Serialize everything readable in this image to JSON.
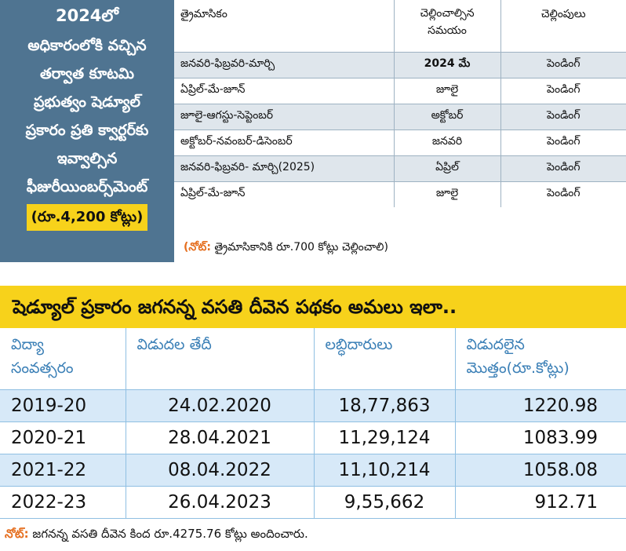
{
  "left_panel": {
    "lines": [
      "2024లో",
      "అధికారంలోకి వచ్చిన",
      "తర్వాత కూటమి",
      "ప్రభుత్వం షెడ్యూల్",
      "ప్రకారం ప్రతి క్వార్టర్‌కు",
      "ఇవ్వాల్సిన",
      "ఫీజురీయింబర్స్‌మెంట్"
    ],
    "amount": "(రూ.4,200 కోట్లు)"
  },
  "quarter_table": {
    "headers": {
      "quarter": "త్రైమాసికం",
      "due_line1": "చెల్లించాల్సిన",
      "due_line2": "సమయం",
      "status": "చెల్లింపులు"
    },
    "rows": [
      {
        "quarter": "జనవరి-ఫిబ్రవరి-మార్చి",
        "due": "2024 మే",
        "status": "పెండింగ్"
      },
      {
        "quarter": "ఏప్రిల్-మే-జూన్",
        "due": "జూలై",
        "status": "పెండింగ్"
      },
      {
        "quarter": "జూలై-ఆగస్టు-సెప్టెంబర్",
        "due": "అక్టోబర్",
        "status": "పెండింగ్"
      },
      {
        "quarter": "అక్టోబర్-నవంబర్-డిసెంబర్",
        "due": "జనవరి",
        "status": "పెండింగ్"
      },
      {
        "quarter": "జనవరి-ఫిబ్రవరి- మార్చి(2025)",
        "due": "ఏప్రిల్",
        "status": "పెండింగ్"
      },
      {
        "quarter": "ఏప్రిల్-మే-జూన్",
        "due": "జూలై",
        "status": "పెండింగ్"
      }
    ],
    "note_label": "(నోట్:",
    "note_text": " త్రైమాసికానికి రూ.700 కోట్లు చెల్లించాలి)"
  },
  "scheme": {
    "title": "షెడ్యూల్ ప్రకారం జగనన్న వసతి దీవెన పథకం అమలు ఇలా..",
    "headers": {
      "year_line1": "విద్యా",
      "year_line2": "సంవత్సరం",
      "date": "విడుదల తేదీ",
      "beneficiaries": "లబ్ధిదారులు",
      "amount_line1": "విడుదలైన",
      "amount_line2": "మొత్తం(రూ.కోట్లు)"
    },
    "rows": [
      {
        "year": "2019-20",
        "date": "24.02.2020",
        "beneficiaries": "18,77,863",
        "amount": "1220.98"
      },
      {
        "year": "2020-21",
        "date": "28.04.2021",
        "beneficiaries": "11,29,124",
        "amount": "1083.99"
      },
      {
        "year": "2021-22",
        "date": "08.04.2022",
        "beneficiaries": "11,10,214",
        "amount": "1058.08"
      },
      {
        "year": "2022-23",
        "date": "26.04.2023",
        "beneficiaries": "9,55,662",
        "amount": "912.71"
      }
    ],
    "note_label": "నోట్:",
    "note_text": " జగనన్న వసతి దీవెన కింద రూ.4275.76 కోట్లు అందించారు."
  },
  "colors": {
    "panel_blue": "#4f7491",
    "highlight_yellow": "#f7d21b",
    "row_grey": "#dfe6ec",
    "row_blue": "#d7e9f8",
    "header_blue_text": "#3a7fb6",
    "note_orange": "#e56e1e"
  }
}
